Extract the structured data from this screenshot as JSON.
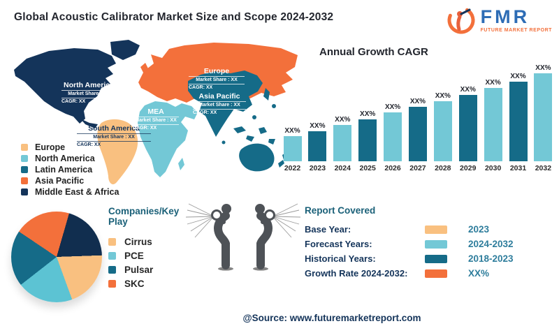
{
  "header": {
    "title": "Global Acoustic Calibrator Market Size and Scope 2024-2032"
  },
  "logo": {
    "abbr": "FMR",
    "tagline": "FUTURE MARKET REPORT"
  },
  "map": {
    "regions": [
      {
        "name": "North America",
        "share": "Market Share : XX",
        "cagr": "CAGR: XX"
      },
      {
        "name": "South America",
        "share": "Market Share : XX",
        "cagr": "CAGR: XX"
      },
      {
        "name": "Europe",
        "share": "Market Share : XX",
        "cagr": "CAGR: XX"
      },
      {
        "name": "MEA",
        "share": "Market Share : XX",
        "cagr": "CAGR: XX"
      },
      {
        "name": "Asia Pacific",
        "share": "Market Share : XX",
        "cagr": "CAGR: XX"
      }
    ],
    "legend": [
      {
        "label": "Europe",
        "color": "#f9c080"
      },
      {
        "label": "North America",
        "color": "#73c8d6"
      },
      {
        "label": "Latin America",
        "color": "#156b88"
      },
      {
        "label": "Asia Pacific",
        "color": "#f3703b"
      },
      {
        "label": "Middle East & Africa",
        "color": "#14345a"
      }
    ]
  },
  "chart_data": [
    {
      "type": "bar",
      "title": "Annual Growth CAGR",
      "categories": [
        "2022",
        "2023",
        "2024",
        "2025",
        "2026",
        "2027",
        "2028",
        "2029",
        "2030",
        "2031",
        "2032"
      ],
      "values_relative": [
        36,
        43,
        52,
        60,
        70,
        78,
        86,
        95,
        105,
        114,
        126
      ],
      "data_labels": [
        "XX%",
        "XX%",
        "XX%",
        "XX%",
        "XX%",
        "XX%",
        "XX%",
        "XX%",
        "XX%",
        "XX%",
        "XX%"
      ],
      "bar_colors_alternating": [
        "#73c8d6",
        "#156b88"
      ],
      "xlabel": "",
      "ylabel": "",
      "grid": false,
      "legend": "none",
      "note": "printed values are placeholder XX%; heights are relative pixel estimates"
    },
    {
      "type": "pie",
      "title": "Companies/Key Play",
      "start_angle_deg": 16,
      "slices": [
        {
          "label": "",
          "color": "#112e4f",
          "percent": 20
        },
        {
          "label": "Cirrus",
          "color": "#f9c080",
          "percent": 20
        },
        {
          "label": "PCE",
          "color": "#5cc3d3",
          "percent": 20
        },
        {
          "label": "Pulsar",
          "color": "#156b88",
          "percent": 20
        },
        {
          "label": "SKC",
          "color": "#f3703b",
          "percent": 20
        }
      ]
    }
  ],
  "companies": {
    "title": "Companies/Key Play",
    "items": [
      {
        "label": "Cirrus",
        "color": "#f9c080"
      },
      {
        "label": "PCE",
        "color": "#73c8d6"
      },
      {
        "label": "Pulsar",
        "color": "#156b88"
      },
      {
        "label": "SKC",
        "color": "#f3703b"
      }
    ]
  },
  "report": {
    "title": "Report Covered",
    "rows": [
      {
        "label": "Base Year:",
        "value": "2023",
        "color": "#f9c080"
      },
      {
        "label": "Forecast Years:",
        "value": "2024-2032",
        "color": "#73c8d6"
      },
      {
        "label": "Historical Years:",
        "value": "2018-2023",
        "color": "#156b88"
      },
      {
        "label": "Growth Rate 2024-2032:",
        "value": "XX%",
        "color": "#f3703b"
      }
    ]
  },
  "source": {
    "text": "@Source: www.futuremarketreport.com"
  },
  "colors": {
    "navy": "#14345a",
    "orange": "#f3703b",
    "peach": "#f9c080",
    "light_teal": "#73c8d6",
    "dark_teal": "#156b88",
    "heading_teal": "#1a6078",
    "value_teal": "#2e7d9c",
    "figure_gray": "#4e5257"
  }
}
